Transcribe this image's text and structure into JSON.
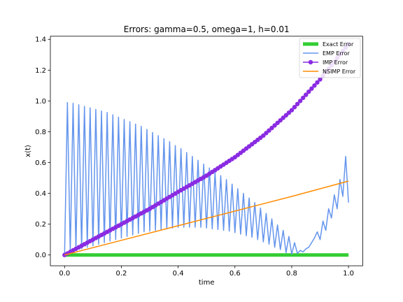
{
  "chart_data": {
    "type": "line",
    "title": "Errors: gamma=0.5, omega=1, h=0.01",
    "xlabel": "time",
    "ylabel": "x(t)",
    "xlim": [
      -0.05,
      1.05
    ],
    "ylim": [
      -0.07,
      1.42
    ],
    "xticks": [
      0.0,
      0.2,
      0.4,
      0.6,
      0.8,
      1.0
    ],
    "xtick_labels": [
      "0.0",
      "0.2",
      "0.4",
      "0.6",
      "0.8",
      "1.0"
    ],
    "yticks": [
      0.0,
      0.2,
      0.4,
      0.6,
      0.8,
      1.0,
      1.2,
      1.4
    ],
    "ytick_labels": [
      "0.0",
      "0.2",
      "0.4",
      "0.6",
      "0.8",
      "1.0",
      "1.2",
      "1.4"
    ],
    "grid": false,
    "legend_position": "top-right",
    "series": [
      {
        "name": "Exact Error",
        "color": "#32cd32",
        "style": "thick-line",
        "x": [
          0.0,
          1.0
        ],
        "y": [
          0.0,
          0.0
        ]
      },
      {
        "name": "EMP Error",
        "color": "#6495ed",
        "style": "line",
        "x": [
          0.0,
          0.01,
          0.02,
          0.03,
          0.04,
          0.05,
          0.06,
          0.07,
          0.08,
          0.09,
          0.1,
          0.11,
          0.12,
          0.13,
          0.14,
          0.15,
          0.16,
          0.17,
          0.18,
          0.19,
          0.2,
          0.21,
          0.22,
          0.23,
          0.24,
          0.25,
          0.26,
          0.27,
          0.28,
          0.29,
          0.3,
          0.31,
          0.32,
          0.33,
          0.34,
          0.35,
          0.36,
          0.37,
          0.38,
          0.39,
          0.4,
          0.41,
          0.42,
          0.43,
          0.44,
          0.45,
          0.46,
          0.47,
          0.48,
          0.49,
          0.5,
          0.51,
          0.52,
          0.53,
          0.54,
          0.55,
          0.56,
          0.57,
          0.58,
          0.59,
          0.6,
          0.61,
          0.62,
          0.63,
          0.64,
          0.65,
          0.66,
          0.67,
          0.68,
          0.69,
          0.7,
          0.71,
          0.72,
          0.73,
          0.74,
          0.75,
          0.76,
          0.77,
          0.78,
          0.79,
          0.8,
          0.81,
          0.82,
          0.83,
          0.84,
          0.85,
          0.86,
          0.87,
          0.88,
          0.89,
          0.9,
          0.91,
          0.92,
          0.93,
          0.94,
          0.95,
          0.96,
          0.97,
          0.98,
          0.99,
          1.0
        ],
        "y": [
          0.0,
          0.99,
          0.02,
          0.985,
          0.03,
          0.975,
          0.04,
          0.965,
          0.05,
          0.955,
          0.06,
          0.945,
          0.07,
          0.935,
          0.08,
          0.925,
          0.09,
          0.91,
          0.1,
          0.895,
          0.11,
          0.88,
          0.12,
          0.865,
          0.13,
          0.85,
          0.14,
          0.835,
          0.15,
          0.815,
          0.155,
          0.795,
          0.16,
          0.775,
          0.165,
          0.755,
          0.17,
          0.735,
          0.175,
          0.71,
          0.18,
          0.69,
          0.18,
          0.665,
          0.18,
          0.64,
          0.18,
          0.615,
          0.18,
          0.59,
          0.175,
          0.565,
          0.17,
          0.54,
          0.165,
          0.515,
          0.16,
          0.49,
          0.155,
          0.46,
          0.145,
          0.43,
          0.135,
          0.4,
          0.125,
          0.37,
          0.115,
          0.34,
          0.1,
          0.305,
          0.085,
          0.27,
          0.07,
          0.235,
          0.05,
          0.195,
          0.035,
          0.16,
          0.015,
          0.12,
          0.005,
          0.08,
          0.01,
          0.03,
          0.02,
          0.04,
          0.05,
          0.08,
          0.11,
          0.15,
          0.1,
          0.22,
          0.16,
          0.3,
          0.24,
          0.39,
          0.3,
          0.49,
          0.38,
          0.64,
          0.34
        ]
      },
      {
        "name": "IMP Error",
        "color": "#8a2be2",
        "style": "line-marker",
        "x": [
          0.0,
          0.1,
          0.2,
          0.3,
          0.4,
          0.5,
          0.6,
          0.7,
          0.8,
          0.9,
          1.0
        ],
        "y": [
          0.0,
          0.1,
          0.2,
          0.3,
          0.41,
          0.515,
          0.635,
          0.775,
          0.94,
          1.14,
          1.37
        ]
      },
      {
        "name": "NSIMP Error",
        "color": "#ff8c00",
        "style": "line",
        "x": [
          0.0,
          0.2,
          0.4,
          0.6,
          0.8,
          1.0
        ],
        "y": [
          0.0,
          0.095,
          0.19,
          0.285,
          0.38,
          0.48
        ]
      }
    ]
  }
}
